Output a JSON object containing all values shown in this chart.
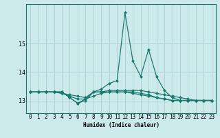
{
  "xlabel": "Humidex (Indice chaleur)",
  "bg_color": "#cceaea",
  "grid_color": "#aacfcf",
  "line_color": "#1a7a6e",
  "xlim_min": -0.5,
  "xlim_max": 23.5,
  "ylim_min": 12.55,
  "ylim_max": 16.4,
  "yticks": [
    13,
    14,
    15
  ],
  "xticks": [
    0,
    1,
    2,
    3,
    4,
    5,
    6,
    7,
    8,
    9,
    10,
    11,
    12,
    13,
    14,
    15,
    16,
    17,
    18,
    19,
    20,
    21,
    22,
    23
  ],
  "series": [
    [
      13.3,
      13.3,
      13.3,
      13.3,
      13.3,
      13.1,
      12.9,
      13.0,
      13.3,
      13.4,
      13.6,
      13.7,
      16.1,
      14.4,
      13.85,
      14.8,
      13.85,
      13.35,
      13.1,
      13.0,
      13.0,
      13.0,
      13.0,
      13.0
    ],
    [
      13.3,
      13.3,
      13.3,
      13.3,
      13.3,
      13.1,
      12.9,
      13.05,
      13.3,
      13.3,
      13.35,
      13.35,
      13.35,
      13.35,
      13.35,
      13.3,
      13.25,
      13.2,
      13.15,
      13.1,
      13.05,
      13.0,
      13.0,
      13.0
    ],
    [
      13.3,
      13.3,
      13.3,
      13.3,
      13.25,
      13.2,
      13.15,
      13.1,
      13.3,
      13.3,
      13.3,
      13.3,
      13.3,
      13.25,
      13.2,
      13.15,
      13.1,
      13.05,
      13.0,
      13.0,
      13.0,
      13.0,
      13.0,
      13.0
    ],
    [
      13.3,
      13.3,
      13.3,
      13.3,
      13.25,
      13.15,
      13.05,
      13.05,
      13.15,
      13.25,
      13.3,
      13.3,
      13.3,
      13.3,
      13.25,
      13.2,
      13.1,
      13.05,
      13.0,
      13.0,
      13.0,
      13.0,
      13.0,
      13.0
    ]
  ],
  "xlabel_fontsize": 5.5,
  "tick_fontsize": 5.5,
  "ytick_fontsize": 6.0,
  "linewidth": 0.9,
  "markersize": 2.2
}
